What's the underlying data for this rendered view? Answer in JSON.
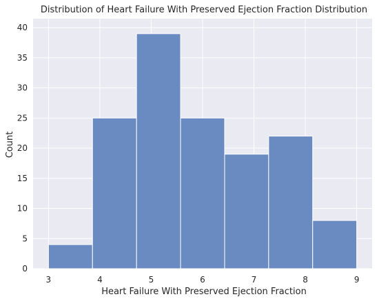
{
  "chart_data": {
    "type": "bar",
    "title": "Distribution of Heart Failure With Preserved Ejection Fraction Distribution",
    "xlabel": "Heart Failure With Preserved Ejection Fraction",
    "ylabel": "Count",
    "xlim": [
      2.7,
      9.3
    ],
    "ylim": [
      0,
      41.5
    ],
    "bin_edges": [
      3.0,
      3.857,
      4.714,
      5.571,
      6.429,
      7.286,
      8.143,
      9.0
    ],
    "values": [
      4,
      25,
      39,
      25,
      19,
      22,
      8
    ],
    "x_ticks": [
      3,
      4,
      5,
      6,
      7,
      8,
      9
    ],
    "y_ticks": [
      0,
      5,
      10,
      15,
      20,
      25,
      30,
      35,
      40
    ],
    "grid": true,
    "colors": {
      "background": "#eaeaf2",
      "grid": "#ffffff",
      "bar_fill": "#6a8bc1",
      "bar_edge": "#ffffff"
    }
  }
}
